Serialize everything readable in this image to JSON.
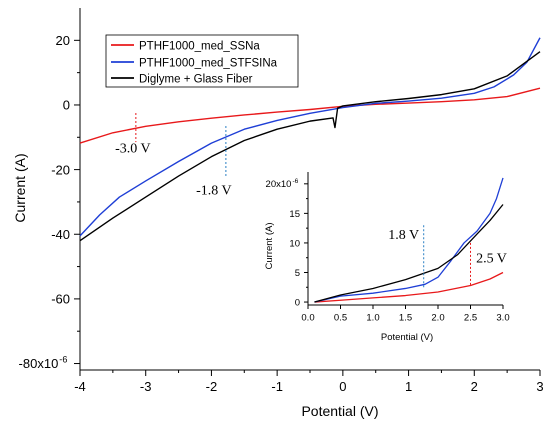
{
  "chart_data": [
    {
      "type": "line",
      "xlabel": "Potential (V)",
      "ylabel": "Current (A)",
      "x_ticks": [
        "-4",
        "-3",
        "-2",
        "-1",
        "0",
        "1",
        "2",
        "3"
      ],
      "y_ticks": [
        "20",
        "0",
        "-20",
        "-40",
        "-60",
        "-80x10"
      ],
      "y_exponent": "-6",
      "xlim": [
        -4,
        3
      ],
      "ylim": [
        -82,
        30
      ],
      "legend_position": "top-left",
      "series": [
        {
          "name": "PTHF1000_med_SSNa",
          "color": "#e8191b",
          "points": [
            [
              -4,
              -11.8
            ],
            [
              -3.5,
              -8.6
            ],
            [
              -3,
              -6.6
            ],
            [
              -2.5,
              -5.2
            ],
            [
              -2,
              -4.1
            ],
            [
              -1.5,
              -3.1
            ],
            [
              -1,
              -2.2
            ],
            [
              -0.5,
              -1.4
            ],
            [
              0,
              -0.4
            ],
            [
              0.5,
              0.2
            ],
            [
              1,
              0.6
            ],
            [
              1.5,
              1.0
            ],
            [
              2,
              1.6
            ],
            [
              2.5,
              2.6
            ],
            [
              3,
              5.2
            ]
          ]
        },
        {
          "name": "PTHF1000_med_STFSINa",
          "color": "#1f3fd6",
          "points": [
            [
              -4,
              -40.5
            ],
            [
              -3.7,
              -34
            ],
            [
              -3.4,
              -28.5
            ],
            [
              -3,
              -23.5
            ],
            [
              -2.5,
              -17.5
            ],
            [
              -2,
              -11.8
            ],
            [
              -1.5,
              -7.5
            ],
            [
              -1,
              -4.8
            ],
            [
              -0.5,
              -2.6
            ],
            [
              0,
              -0.8
            ],
            [
              0.5,
              0.5
            ],
            [
              1,
              1.2
            ],
            [
              1.5,
              2.1
            ],
            [
              2,
              3.6
            ],
            [
              2.3,
              5.6
            ],
            [
              2.6,
              9.3
            ],
            [
              2.8,
              13.2
            ],
            [
              3,
              20.8
            ]
          ]
        },
        {
          "name": "Diglyme + Glass Fiber",
          "color": "#000000",
          "points": [
            [
              -4,
              -42.0
            ],
            [
              -3.5,
              -35.0
            ],
            [
              -3,
              -28.5
            ],
            [
              -2.5,
              -22.0
            ],
            [
              -2,
              -16.0
            ],
            [
              -1.5,
              -11.0
            ],
            [
              -1,
              -7.5
            ],
            [
              -0.5,
              -5.0
            ],
            [
              -0.15,
              -4.0
            ],
            [
              -0.12,
              -7.0
            ],
            [
              -0.08,
              -1.0
            ],
            [
              0,
              -0.3
            ],
            [
              0.5,
              1.0
            ],
            [
              1,
              2.0
            ],
            [
              1.5,
              3.2
            ],
            [
              2,
              5.0
            ],
            [
              2.5,
              9.0
            ],
            [
              3,
              16.5
            ]
          ]
        }
      ],
      "annotations": [
        {
          "text": "-3.0 V",
          "color": "#e8191b",
          "x": -3.15
        },
        {
          "text": "-1.8 V",
          "color": "#2a7fc4",
          "x": -1.78
        }
      ]
    },
    {
      "type": "line",
      "xlabel": "Potential (V)",
      "ylabel": "Current (A)",
      "x_ticks": [
        "0.0",
        "0.5",
        "1.0",
        "1.5",
        "2.0",
        "2.5",
        "3.0"
      ],
      "y_ticks": [
        "20x10",
        "15",
        "10",
        "5",
        "0"
      ],
      "y_exponent": "-6",
      "xlim": [
        0,
        3.0
      ],
      "ylim": [
        -0.5,
        22
      ],
      "series": [
        {
          "name": "PTHF1000_med_SSNa",
          "color": "#e8191b",
          "points": [
            [
              0.1,
              0.0
            ],
            [
              0.5,
              0.3
            ],
            [
              1.0,
              0.7
            ],
            [
              1.5,
              1.1
            ],
            [
              2.0,
              1.7
            ],
            [
              2.5,
              2.8
            ],
            [
              2.8,
              3.9
            ],
            [
              3.0,
              5.0
            ]
          ]
        },
        {
          "name": "PTHF1000_med_STFSINa",
          "color": "#1f3fd6",
          "points": [
            [
              0.1,
              0.0
            ],
            [
              0.5,
              1.0
            ],
            [
              1.0,
              1.5
            ],
            [
              1.5,
              2.3
            ],
            [
              1.8,
              3.0
            ],
            [
              2.0,
              4.2
            ],
            [
              2.2,
              7.0
            ],
            [
              2.4,
              10.0
            ],
            [
              2.6,
              12.0
            ],
            [
              2.8,
              15.0
            ],
            [
              2.9,
              17.5
            ],
            [
              3.0,
              21.0
            ]
          ]
        },
        {
          "name": "Diglyme + Glass Fiber",
          "color": "#000000",
          "points": [
            [
              0.1,
              0.0
            ],
            [
              0.5,
              1.2
            ],
            [
              1.0,
              2.3
            ],
            [
              1.5,
              3.8
            ],
            [
              2.0,
              5.7
            ],
            [
              2.3,
              8.0
            ],
            [
              2.6,
              11.5
            ],
            [
              2.8,
              13.8
            ],
            [
              3.0,
              16.5
            ]
          ]
        }
      ],
      "annotations": [
        {
          "text": "1.8 V",
          "color": "#2a7fc4",
          "x": 1.78
        },
        {
          "text": "2.5 V",
          "color": "#e8191b",
          "x": 2.5
        }
      ]
    }
  ]
}
